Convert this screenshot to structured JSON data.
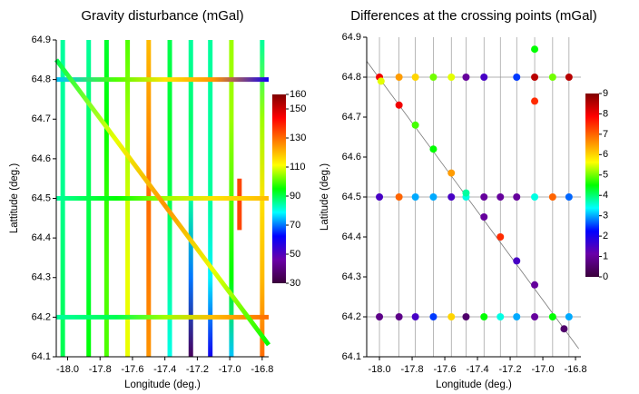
{
  "chart_data": [
    {
      "type": "tracks",
      "title": "Gravity disturbance (mGal)",
      "xlabel": "Longitude (deg.)",
      "ylabel": "Lattitude (deg.)",
      "xlim": [
        -18.07,
        -16.76
      ],
      "ylim": [
        64.1,
        64.9
      ],
      "xticks": [
        {
          "value": -18,
          "label": "-18.0"
        },
        {
          "value": -17.8,
          "label": "-17.8"
        },
        {
          "value": -17.6,
          "label": "-17.6"
        },
        {
          "value": -17.4,
          "label": "-17.4"
        },
        {
          "value": -17.2,
          "label": "-17.2"
        },
        {
          "value": -17,
          "label": "-17.0"
        },
        {
          "value": -16.8,
          "label": "-16.8"
        }
      ],
      "yticks": [
        64.1,
        64.2,
        64.3,
        64.4,
        64.5,
        64.6,
        64.7,
        64.8,
        64.9
      ],
      "colormap": [
        "#3a003a",
        "#6a00a8",
        "#0000ff",
        "#00ffff",
        "#00ff00",
        "#ffff00",
        "#ff8000",
        "#ff0000",
        "#800000"
      ],
      "clim": [
        30,
        160
      ],
      "cticks": [
        30,
        50,
        70,
        90,
        110,
        130,
        150,
        160
      ],
      "tracks": [
        {
          "x": [
            -18.03,
            -18.03,
            -18.03,
            -18.03,
            -18.03
          ],
          "y": [
            64.1,
            64.3,
            64.5,
            64.7,
            64.9
          ],
          "values": [
            90,
            88,
            86,
            85,
            85
          ]
        },
        {
          "x": [
            -17.87,
            -17.87,
            -17.87,
            -17.87,
            -17.87
          ],
          "y": [
            64.1,
            64.3,
            64.5,
            64.7,
            64.9
          ],
          "values": [
            95,
            92,
            90,
            88,
            85
          ]
        },
        {
          "x": [
            -17.76,
            -17.76,
            -17.76,
            -17.76,
            -17.76
          ],
          "y": [
            64.1,
            64.3,
            64.5,
            64.7,
            64.9
          ],
          "values": [
            100,
            100,
            98,
            95,
            92
          ]
        },
        {
          "x": [
            -17.63,
            -17.63,
            -17.63,
            -17.63,
            -17.63
          ],
          "y": [
            64.1,
            64.3,
            64.5,
            64.7,
            64.9
          ],
          "values": [
            110,
            110,
            108,
            105,
            100
          ]
        },
        {
          "x": [
            -17.5,
            -17.5,
            -17.5,
            -17.5,
            -17.5
          ],
          "y": [
            64.1,
            64.3,
            64.5,
            64.7,
            64.9
          ],
          "values": [
            125,
            128,
            130,
            125,
            120
          ]
        },
        {
          "x": [
            -17.37,
            -17.37,
            -17.37,
            -17.37,
            -17.37
          ],
          "y": [
            64.1,
            64.3,
            64.5,
            64.7,
            64.9
          ],
          "values": [
            80,
            85,
            90,
            92,
            90
          ]
        },
        {
          "x": [
            -17.24,
            -17.24,
            -17.24,
            -17.24,
            -17.24
          ],
          "y": [
            64.1,
            64.3,
            64.5,
            64.7,
            64.9
          ],
          "values": [
            35,
            70,
            85,
            88,
            85
          ]
        },
        {
          "x": [
            -17.12,
            -17.12,
            -17.12,
            -17.12,
            -17.12
          ],
          "y": [
            64.1,
            64.3,
            64.5,
            64.7,
            64.9
          ],
          "values": [
            60,
            78,
            85,
            85,
            85
          ]
        },
        {
          "x": [
            -16.99,
            -16.99,
            -16.99,
            -16.99,
            -16.99
          ],
          "y": [
            64.1,
            64.3,
            64.5,
            64.7,
            64.9
          ],
          "values": [
            75,
            95,
            100,
            105,
            105
          ]
        },
        {
          "x": [
            -16.8,
            -16.8,
            -16.8,
            -16.8,
            -16.8
          ],
          "y": [
            64.1,
            64.3,
            64.5,
            64.7,
            64.9
          ],
          "values": [
            130,
            120,
            115,
            105,
            85
          ]
        },
        {
          "x": [
            -16.94,
            -16.94
          ],
          "y": [
            64.42,
            64.55
          ],
          "values": [
            135,
            135
          ]
        },
        {
          "x": [
            -18.07,
            -17.7,
            -17.4,
            -17.1,
            -16.76
          ],
          "y": [
            64.8,
            64.8,
            64.8,
            64.8,
            64.8
          ],
          "values": [
            75,
            100,
            115,
            125,
            60
          ]
        },
        {
          "x": [
            -18.07,
            -17.7,
            -17.4,
            -17.1,
            -16.76
          ],
          "y": [
            64.5,
            64.5,
            64.5,
            64.5,
            64.5
          ],
          "values": [
            85,
            95,
            105,
            115,
            120
          ]
        },
        {
          "x": [
            -18.07,
            -17.7,
            -17.4,
            -17.1,
            -16.76
          ],
          "y": [
            64.2,
            64.2,
            64.2,
            64.2,
            64.2
          ],
          "values": [
            85,
            90,
            105,
            120,
            130
          ]
        },
        {
          "x": [
            -18.07,
            -17.7,
            -17.4,
            -17.1,
            -16.76
          ],
          "y": [
            64.85,
            64.647,
            64.482,
            64.317,
            64.13
          ],
          "values": [
            90,
            110,
            125,
            110,
            95
          ]
        }
      ]
    },
    {
      "type": "scatter",
      "title": "Differences at the crossing points (mGal)",
      "xlabel": "Longitude (deg.)",
      "ylabel": "Latitude (deg.)",
      "xlim": [
        -18.078,
        -16.767
      ],
      "ylim": [
        64.1,
        64.9
      ],
      "xticks": [
        {
          "value": -18,
          "label": "-18.0"
        },
        {
          "value": -17.8,
          "label": "-17.8"
        },
        {
          "value": -17.6,
          "label": "-17.6"
        },
        {
          "value": -17.4,
          "label": "-17.4"
        },
        {
          "value": -17.2,
          "label": "-17.2"
        },
        {
          "value": -17,
          "label": "-17.0"
        },
        {
          "value": -16.8,
          "label": "-16.8"
        }
      ],
      "yticks": [
        64.1,
        64.2,
        64.3,
        64.4,
        64.5,
        64.6,
        64.7,
        64.8,
        64.9
      ],
      "colormap": [
        "#3a003a",
        "#6a00a8",
        "#0000ff",
        "#00ffff",
        "#00ff00",
        "#ffff00",
        "#ff8000",
        "#ff0000",
        "#800000"
      ],
      "clim": [
        0,
        9
      ],
      "cticks": [
        0,
        1,
        2,
        3,
        4,
        5,
        6,
        7,
        8,
        9
      ],
      "vertical_lines": [
        -18.0,
        -17.88,
        -17.78,
        -17.67,
        -17.56,
        -17.47,
        -17.36,
        -17.26,
        -17.16,
        -17.05,
        -16.94,
        -16.84
      ],
      "horizontal_lines": [
        64.8,
        64.5,
        64.2
      ],
      "diagonal": {
        "x": [
          -18.078,
          -16.78
        ],
        "y": [
          64.84,
          64.12
        ]
      },
      "points": {
        "x": [
          -18.0,
          -17.99,
          -17.88,
          -17.78,
          -17.67,
          -17.56,
          -17.47,
          -17.36,
          -17.16,
          -17.05,
          -16.94,
          -16.84,
          -17.05,
          -17.05,
          -18.0,
          -17.88,
          -17.78,
          -17.67,
          -17.56,
          -17.47,
          -17.36,
          -17.26,
          -17.16,
          -17.05,
          -16.94,
          -16.84,
          -18.0,
          -17.88,
          -17.78,
          -17.67,
          -17.56,
          -17.47,
          -17.36,
          -17.26,
          -17.16,
          -17.05,
          -16.94,
          -16.84,
          -17.88,
          -17.78,
          -17.67,
          -17.56,
          -17.47,
          -17.36,
          -17.26,
          -17.16,
          -17.05,
          -16.87
        ],
        "y": [
          64.8,
          64.79,
          64.8,
          64.8,
          64.8,
          64.8,
          64.8,
          64.8,
          64.8,
          64.8,
          64.8,
          64.8,
          64.87,
          64.74,
          64.5,
          64.5,
          64.5,
          64.5,
          64.5,
          64.5,
          64.5,
          64.5,
          64.5,
          64.5,
          64.5,
          64.5,
          64.2,
          64.2,
          64.2,
          64.2,
          64.2,
          64.2,
          64.2,
          64.2,
          64.2,
          64.2,
          64.2,
          64.2,
          64.73,
          64.68,
          64.62,
          64.56,
          64.51,
          64.45,
          64.4,
          64.34,
          64.28,
          64.17
        ],
        "values": [
          8,
          5.5,
          6.5,
          6,
          5,
          5.5,
          1,
          1.5,
          2.5,
          8.5,
          5,
          8.5,
          4.5,
          7.5,
          1.5,
          7,
          3,
          3,
          1.5,
          3.5,
          1,
          1,
          1,
          3.5,
          7,
          2.7,
          0.8,
          0.8,
          1.5,
          2.5,
          6,
          0.5,
          4.5,
          3.5,
          3,
          1,
          4.5,
          3,
          8,
          4.8,
          4.5,
          6.5,
          3.8,
          1,
          7.5,
          1.5,
          1,
          0.5
        ]
      }
    }
  ]
}
